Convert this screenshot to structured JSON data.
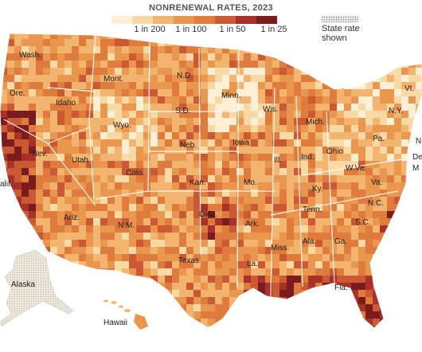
{
  "legend": {
    "title": "NONRENEWAL RATES, 2023",
    "bins": [
      {
        "label": "1 in 200",
        "color": "#f9e3bf"
      },
      {
        "label": "1 in 100",
        "color": "#f2b46f"
      },
      {
        "label": "1 in 50",
        "color": "#e07b3e"
      },
      {
        "label": "1 in 25",
        "color": "#a8322a"
      }
    ],
    "scale_colors": [
      "#fcefd6",
      "#f7d9a6",
      "#f2b46f",
      "#e9964f",
      "#e07b3e",
      "#c95a34",
      "#a8322a",
      "#7a1c1e"
    ],
    "state_rate_label_1": "State rate",
    "state_rate_label_2": "shown"
  },
  "state_labels": [
    {
      "id": "wa",
      "text": "Wash."
    },
    {
      "id": "or",
      "text": "Ore."
    },
    {
      "id": "id",
      "text": "Idaho"
    },
    {
      "id": "mt",
      "text": "Mont."
    },
    {
      "id": "wy",
      "text": "Wyo."
    },
    {
      "id": "nd",
      "text": "N.D."
    },
    {
      "id": "sd",
      "text": "S.D."
    },
    {
      "id": "mn",
      "text": "Minn."
    },
    {
      "id": "wi",
      "text": "Wis."
    },
    {
      "id": "mi",
      "text": "Mich."
    },
    {
      "id": "ny",
      "text": "N.Y."
    },
    {
      "id": "vt",
      "text": "Vt."
    },
    {
      "id": "pa",
      "text": "Pa."
    },
    {
      "id": "nv",
      "text": "Nev."
    },
    {
      "id": "ut",
      "text": "Utah"
    },
    {
      "id": "co",
      "text": "Colo."
    },
    {
      "id": "ne",
      "text": "Neb."
    },
    {
      "id": "ia",
      "text": "Iowa"
    },
    {
      "id": "il",
      "text": "Ill."
    },
    {
      "id": "in",
      "text": "Ind."
    },
    {
      "id": "oh",
      "text": "Ohio"
    },
    {
      "id": "ca",
      "text": "alif."
    },
    {
      "id": "ks",
      "text": "Kan."
    },
    {
      "id": "mo",
      "text": "Mo."
    },
    {
      "id": "ky",
      "text": "Ky."
    },
    {
      "id": "wv",
      "text": "W.Va."
    },
    {
      "id": "va",
      "text": "Va."
    },
    {
      "id": "nj",
      "text": "N"
    },
    {
      "id": "de",
      "text": "De"
    },
    {
      "id": "md",
      "text": "M"
    },
    {
      "id": "az",
      "text": "Ariz."
    },
    {
      "id": "nm",
      "text": "N.M."
    },
    {
      "id": "ok",
      "text": "Okla."
    },
    {
      "id": "ar",
      "text": "Ark."
    },
    {
      "id": "tn",
      "text": "Tenn."
    },
    {
      "id": "nc",
      "text": "N.C."
    },
    {
      "id": "sc",
      "text": "S.C."
    },
    {
      "id": "tx",
      "text": "Texas"
    },
    {
      "id": "ms",
      "text": "Miss."
    },
    {
      "id": "al",
      "text": "Ala."
    },
    {
      "id": "ga",
      "text": "Ga."
    },
    {
      "id": "la",
      "text": "La."
    },
    {
      "id": "fl",
      "text": "Fla."
    },
    {
      "id": "ak",
      "text": "Alaska"
    },
    {
      "id": "hi",
      "text": "Hawaii"
    }
  ]
}
